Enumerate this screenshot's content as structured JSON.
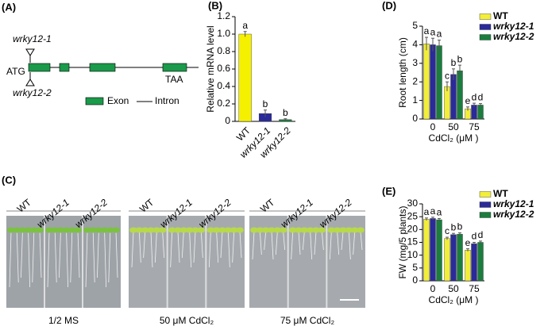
{
  "panel_a": {
    "label": "(A)",
    "allele_top": "wrky12-1",
    "allele_bottom": "wrky12-2",
    "start": "ATG",
    "stop": "TAA",
    "legend_exon": "Exon",
    "legend_intron": "Intron"
  },
  "panel_c": {
    "label": "(C)",
    "genotypes": [
      "WT",
      "wrky12-1",
      "wrky12-2",
      "WT",
      "wrky12-1",
      "wrky12-2",
      "WT",
      "wrky12-1",
      "wrky12-2"
    ],
    "conditions": [
      "1/2 MS",
      "50 μM CdCl₂",
      "75 μM CdCl₂"
    ]
  },
  "chart_data": [
    {
      "type": "bar",
      "label": "(B)",
      "ylabel": "Relative mRNA level",
      "categories": [
        "WT",
        "wrky12-1",
        "wrky12-2"
      ],
      "values": [
        1.0,
        0.09,
        0.02
      ],
      "errors": [
        0.03,
        0.04,
        0.01
      ],
      "letters": [
        "a",
        "b",
        "b"
      ],
      "colors": [
        "#f5f000",
        "#2a2a9a",
        "#1b7d3e"
      ],
      "ylim": [
        0,
        1.2
      ],
      "yticks": [
        0,
        0.2,
        0.4,
        0.6,
        0.8,
        {
          "value": 1,
          "label": "1.0"
        },
        1.2
      ]
    },
    {
      "type": "grouped_bar",
      "label": "(D)",
      "ylabel": "Root length (cm)",
      "xlabel": "CdCl₂ (μM )",
      "categories": [
        "0",
        "50",
        "75"
      ],
      "series": [
        {
          "name": "WT",
          "color": "#f2ee3a",
          "values": [
            4.05,
            1.75,
            0.55
          ],
          "errors": [
            0.35,
            0.25,
            0.1
          ],
          "letters": [
            "a",
            "c",
            "e"
          ]
        },
        {
          "name": "wrky12-1",
          "color": "#2a2a9a",
          "values": [
            4.0,
            2.4,
            0.75
          ],
          "errors": [
            0.35,
            0.3,
            0.1
          ],
          "letters": [
            "a",
            "b",
            "d"
          ]
        },
        {
          "name": "wrky12-2",
          "color": "#1b7d3e",
          "values": [
            3.95,
            2.6,
            0.75
          ],
          "errors": [
            0.3,
            0.3,
            0.08
          ],
          "letters": [
            "a",
            "b",
            "d"
          ]
        }
      ],
      "ylim": [
        0,
        5
      ],
      "yticks": [
        0,
        1,
        2,
        3,
        4,
        5
      ],
      "legend": "upper right"
    },
    {
      "type": "grouped_bar",
      "label": "(E)",
      "ylabel": "FW (mg/5 plants)",
      "xlabel": "CdCl₂ (μM )",
      "categories": [
        "0",
        "50",
        "75"
      ],
      "series": [
        {
          "name": "WT",
          "color": "#f2ee3a",
          "values": [
            24.0,
            16.5,
            12.0
          ],
          "errors": [
            0.5,
            0.5,
            0.5
          ],
          "letters": [
            "a",
            "c",
            "e"
          ]
        },
        {
          "name": "wrky12-1",
          "color": "#2a2a9a",
          "values": [
            24.3,
            18.0,
            14.5
          ],
          "errors": [
            0.5,
            0.5,
            0.5
          ],
          "letters": [
            "a",
            "b",
            "d"
          ]
        },
        {
          "name": "wrky12-2",
          "color": "#1b7d3e",
          "values": [
            23.8,
            18.2,
            15.0
          ],
          "errors": [
            0.5,
            0.5,
            0.5
          ],
          "letters": [
            "a",
            "b",
            "d"
          ]
        }
      ],
      "ylim": [
        0,
        30
      ],
      "yticks": [
        0,
        5,
        10,
        15,
        20,
        25,
        30
      ],
      "legend": "upper right"
    }
  ]
}
